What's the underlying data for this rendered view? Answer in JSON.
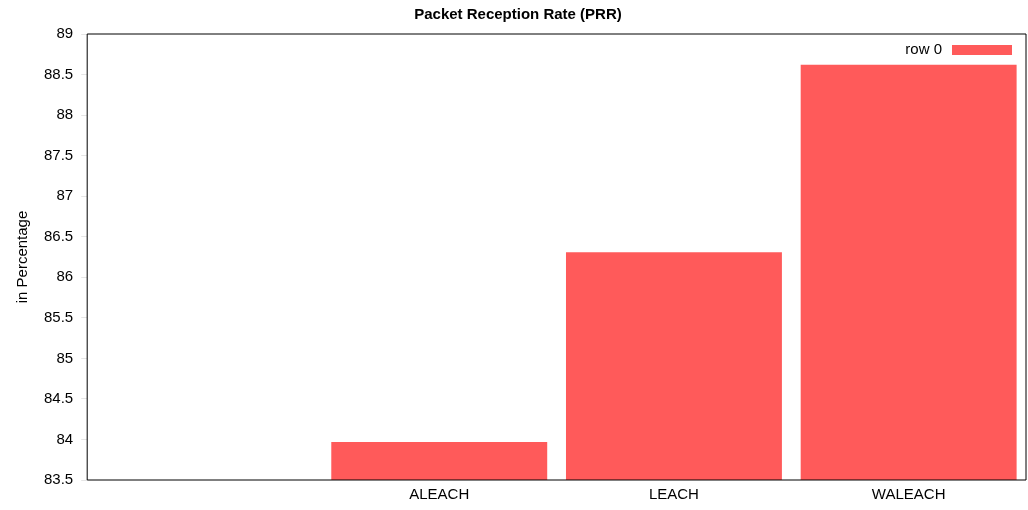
{
  "chart_data": {
    "type": "bar",
    "title": "Packet Reception Rate (PRR)",
    "ylabel": "in Percentage",
    "categories": [
      null,
      "ALEACH",
      "LEACH",
      "WALEACH"
    ],
    "series": [
      {
        "name": "row 0",
        "color": "#ff5a5a",
        "values": [
          null,
          83.97,
          86.31,
          88.62
        ]
      }
    ],
    "ylim": [
      83.5,
      89
    ],
    "yticks": [
      83.5,
      84,
      84.5,
      85,
      85.5,
      86,
      86.5,
      87,
      87.5,
      88,
      88.5,
      89
    ],
    "grid": false,
    "legend": "top right"
  }
}
